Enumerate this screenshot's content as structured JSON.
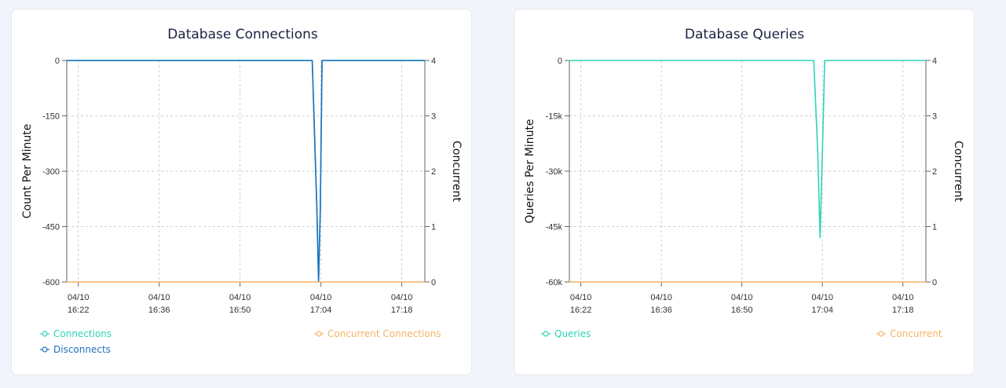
{
  "chart_data": [
    {
      "type": "line",
      "title": "Database Connections",
      "ylabel": "Count Per Minute",
      "y2label": "Concurrent",
      "ylim": [
        -600,
        0
      ],
      "y2lim": [
        0,
        4
      ],
      "yticks": [
        0,
        -150,
        -300,
        -450,
        -600
      ],
      "yticklabels": [
        "0",
        "-150",
        "-300",
        "-450",
        "-600"
      ],
      "y2ticks": [
        0,
        1,
        2,
        3,
        4
      ],
      "y2ticklabels": [
        "0",
        "1",
        "2",
        "3",
        "4"
      ],
      "xlim": [
        0,
        62
      ],
      "xticks": [
        {
          "x": 2,
          "line1": "04/10",
          "line2": "16:22"
        },
        {
          "x": 16,
          "line1": "04/10",
          "line2": "16:36"
        },
        {
          "x": 30,
          "line1": "04/10",
          "line2": "16:50"
        },
        {
          "x": 44,
          "line1": "04/10",
          "line2": "17:04"
        },
        {
          "x": 58,
          "line1": "04/10",
          "line2": "17:18"
        }
      ],
      "series": [
        {
          "name": "Connections",
          "color": "#2ed3b7",
          "axis": "left",
          "x": [
            0,
            42.5,
            43.3,
            43.6,
            43.9,
            44.2,
            45.0,
            62
          ],
          "y": [
            0,
            0,
            -400,
            -600,
            -400,
            0,
            0,
            0
          ]
        },
        {
          "name": "Disconnects",
          "color": "#1f6fc0",
          "axis": "left",
          "x": [
            0,
            42.5,
            43.3,
            43.6,
            43.9,
            44.2,
            45.0,
            62
          ],
          "y": [
            0,
            0,
            -400,
            -600,
            -400,
            0,
            0,
            0
          ]
        },
        {
          "name": "Concurrent Connections",
          "color": "#f5b365",
          "axis": "right",
          "x": [
            0,
            62
          ],
          "y": [
            0,
            0
          ]
        }
      ]
    },
    {
      "type": "line",
      "title": "Database Queries",
      "ylabel": "Queries Per Minute",
      "y2label": "Concurrent",
      "ylim": [
        -60000,
        0
      ],
      "y2lim": [
        0,
        4
      ],
      "yticks": [
        0,
        -15000,
        -30000,
        -45000,
        -60000
      ],
      "yticklabels": [
        "0",
        "-15k",
        "-30k",
        "-45k",
        "-60k"
      ],
      "y2ticks": [
        0,
        1,
        2,
        3,
        4
      ],
      "y2ticklabels": [
        "0",
        "1",
        "2",
        "3",
        "4"
      ],
      "xlim": [
        0,
        62
      ],
      "xticks": [
        {
          "x": 2,
          "line1": "04/10",
          "line2": "16:22"
        },
        {
          "x": 16,
          "line1": "04/10",
          "line2": "16:36"
        },
        {
          "x": 30,
          "line1": "04/10",
          "line2": "16:50"
        },
        {
          "x": 44,
          "line1": "04/10",
          "line2": "17:04"
        },
        {
          "x": 58,
          "line1": "04/10",
          "line2": "17:18"
        }
      ],
      "series": [
        {
          "name": "Queries",
          "color": "#2ed3b7",
          "axis": "left",
          "x": [
            0,
            42.5,
            43.2,
            43.6,
            44.0,
            44.4,
            45.0,
            62
          ],
          "y": [
            0,
            0,
            -25000,
            -48000,
            -25000,
            0,
            0,
            0
          ]
        },
        {
          "name": "Concurrent",
          "color": "#f5b365",
          "axis": "right",
          "x": [
            0,
            62
          ],
          "y": [
            0,
            0
          ]
        }
      ]
    }
  ]
}
